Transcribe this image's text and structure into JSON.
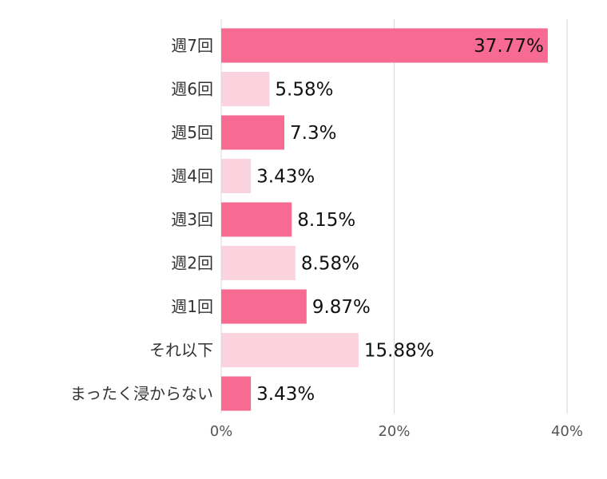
{
  "chart_data": {
    "type": "bar",
    "orientation": "horizontal",
    "categories": [
      "週7回",
      "週6回",
      "週5回",
      "週4回",
      "週3回",
      "週2回",
      "週1回",
      "それ以下",
      "まったく浸からない"
    ],
    "values": [
      37.77,
      5.58,
      7.3,
      3.43,
      8.15,
      8.58,
      9.87,
      15.88,
      3.43
    ],
    "value_labels": [
      "37.77%",
      "5.58%",
      "7.3%",
      "3.43%",
      "8.15%",
      "8.58%",
      "9.87%",
      "15.88%",
      "3.43%"
    ],
    "xlim": [
      0,
      40
    ],
    "x_ticks": [
      0,
      20,
      40
    ],
    "x_tick_labels": [
      "0%",
      "20%",
      "40%"
    ],
    "grid": true,
    "colors": [
      "#f76b92",
      "#fbd3df"
    ]
  }
}
